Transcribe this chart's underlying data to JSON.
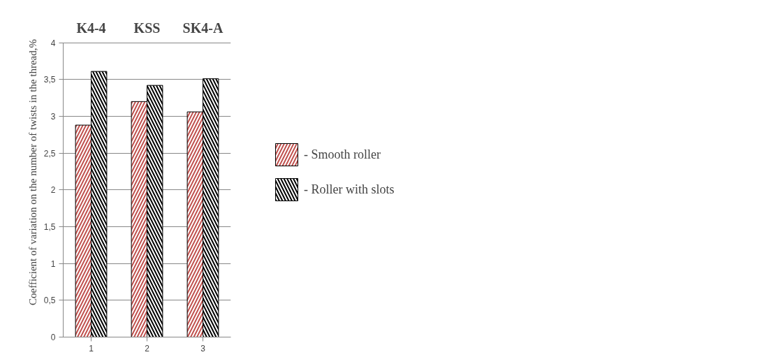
{
  "chart_data": {
    "type": "bar",
    "categories": [
      "1",
      "2",
      "3"
    ],
    "ylabel": "Coefficient of variation on the number of twists in the thread,%",
    "series": [
      {
        "name": "- Smooth roller",
        "color": "#c0504d",
        "values": [
          2.88,
          3.2,
          3.06
        ]
      },
      {
        "name": "- Roller with slots",
        "color": "#000000",
        "values": [
          3.61,
          3.42,
          3.51
        ]
      }
    ],
    "ylim": [
      0,
      4
    ],
    "yticks": [
      0,
      {
        "value": 0.5,
        "label": "0,5"
      },
      1,
      {
        "value": 1.5,
        "label": "1,5"
      },
      2,
      {
        "value": 2.5,
        "label": "2,5"
      },
      3,
      {
        "value": 3.5,
        "label": "3,5"
      },
      4
    ],
    "grid": "y",
    "legend": "right",
    "annotations": [
      "K4-4",
      "KSS",
      "SK4-A"
    ]
  }
}
